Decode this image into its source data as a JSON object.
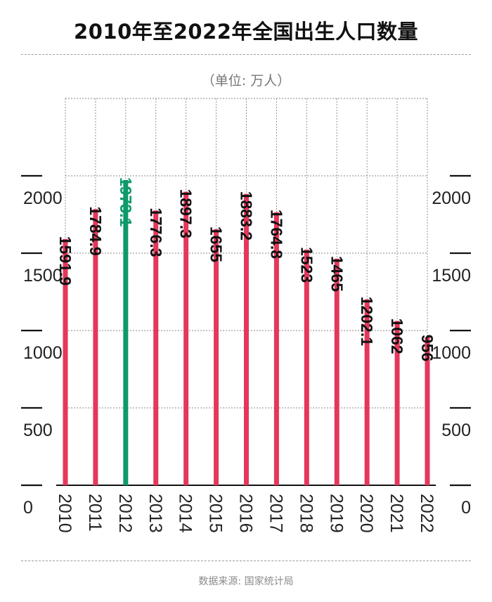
{
  "title": "2010年至2022年全国出生人口数量",
  "unit": "（单位: 万人）",
  "source": "数据来源: 国家统计局",
  "colors": {
    "bar": "#e5375b",
    "highlight": "#0e9a68",
    "grid": "#888888"
  },
  "chart_data": {
    "type": "bar",
    "title": "2010年至2022年全国出生人口数量",
    "categories": [
      "2010",
      "2011",
      "2012",
      "2013",
      "2014",
      "2015",
      "2016",
      "2017",
      "2018",
      "2019",
      "2020",
      "2021",
      "2022"
    ],
    "values": [
      1591.9,
      1784.9,
      1973.1,
      1776.3,
      1897.3,
      1655,
      1883.2,
      1764.8,
      1523,
      1465,
      1202.1,
      1062,
      956
    ],
    "value_labels": [
      "1591.9",
      "1784.9",
      "1973.1",
      "1776.3",
      "1897.3",
      "1655",
      "1883.2",
      "1764.8",
      "1523",
      "1465",
      "1202.1",
      "1062",
      "956"
    ],
    "highlight_index": 2,
    "ylim": [
      0,
      2500
    ],
    "yticks": [
      0,
      500,
      1000,
      1500,
      2000
    ],
    "ytick_labels": [
      "0",
      "500",
      "1000",
      "1500",
      "2000"
    ],
    "grid": true
  }
}
